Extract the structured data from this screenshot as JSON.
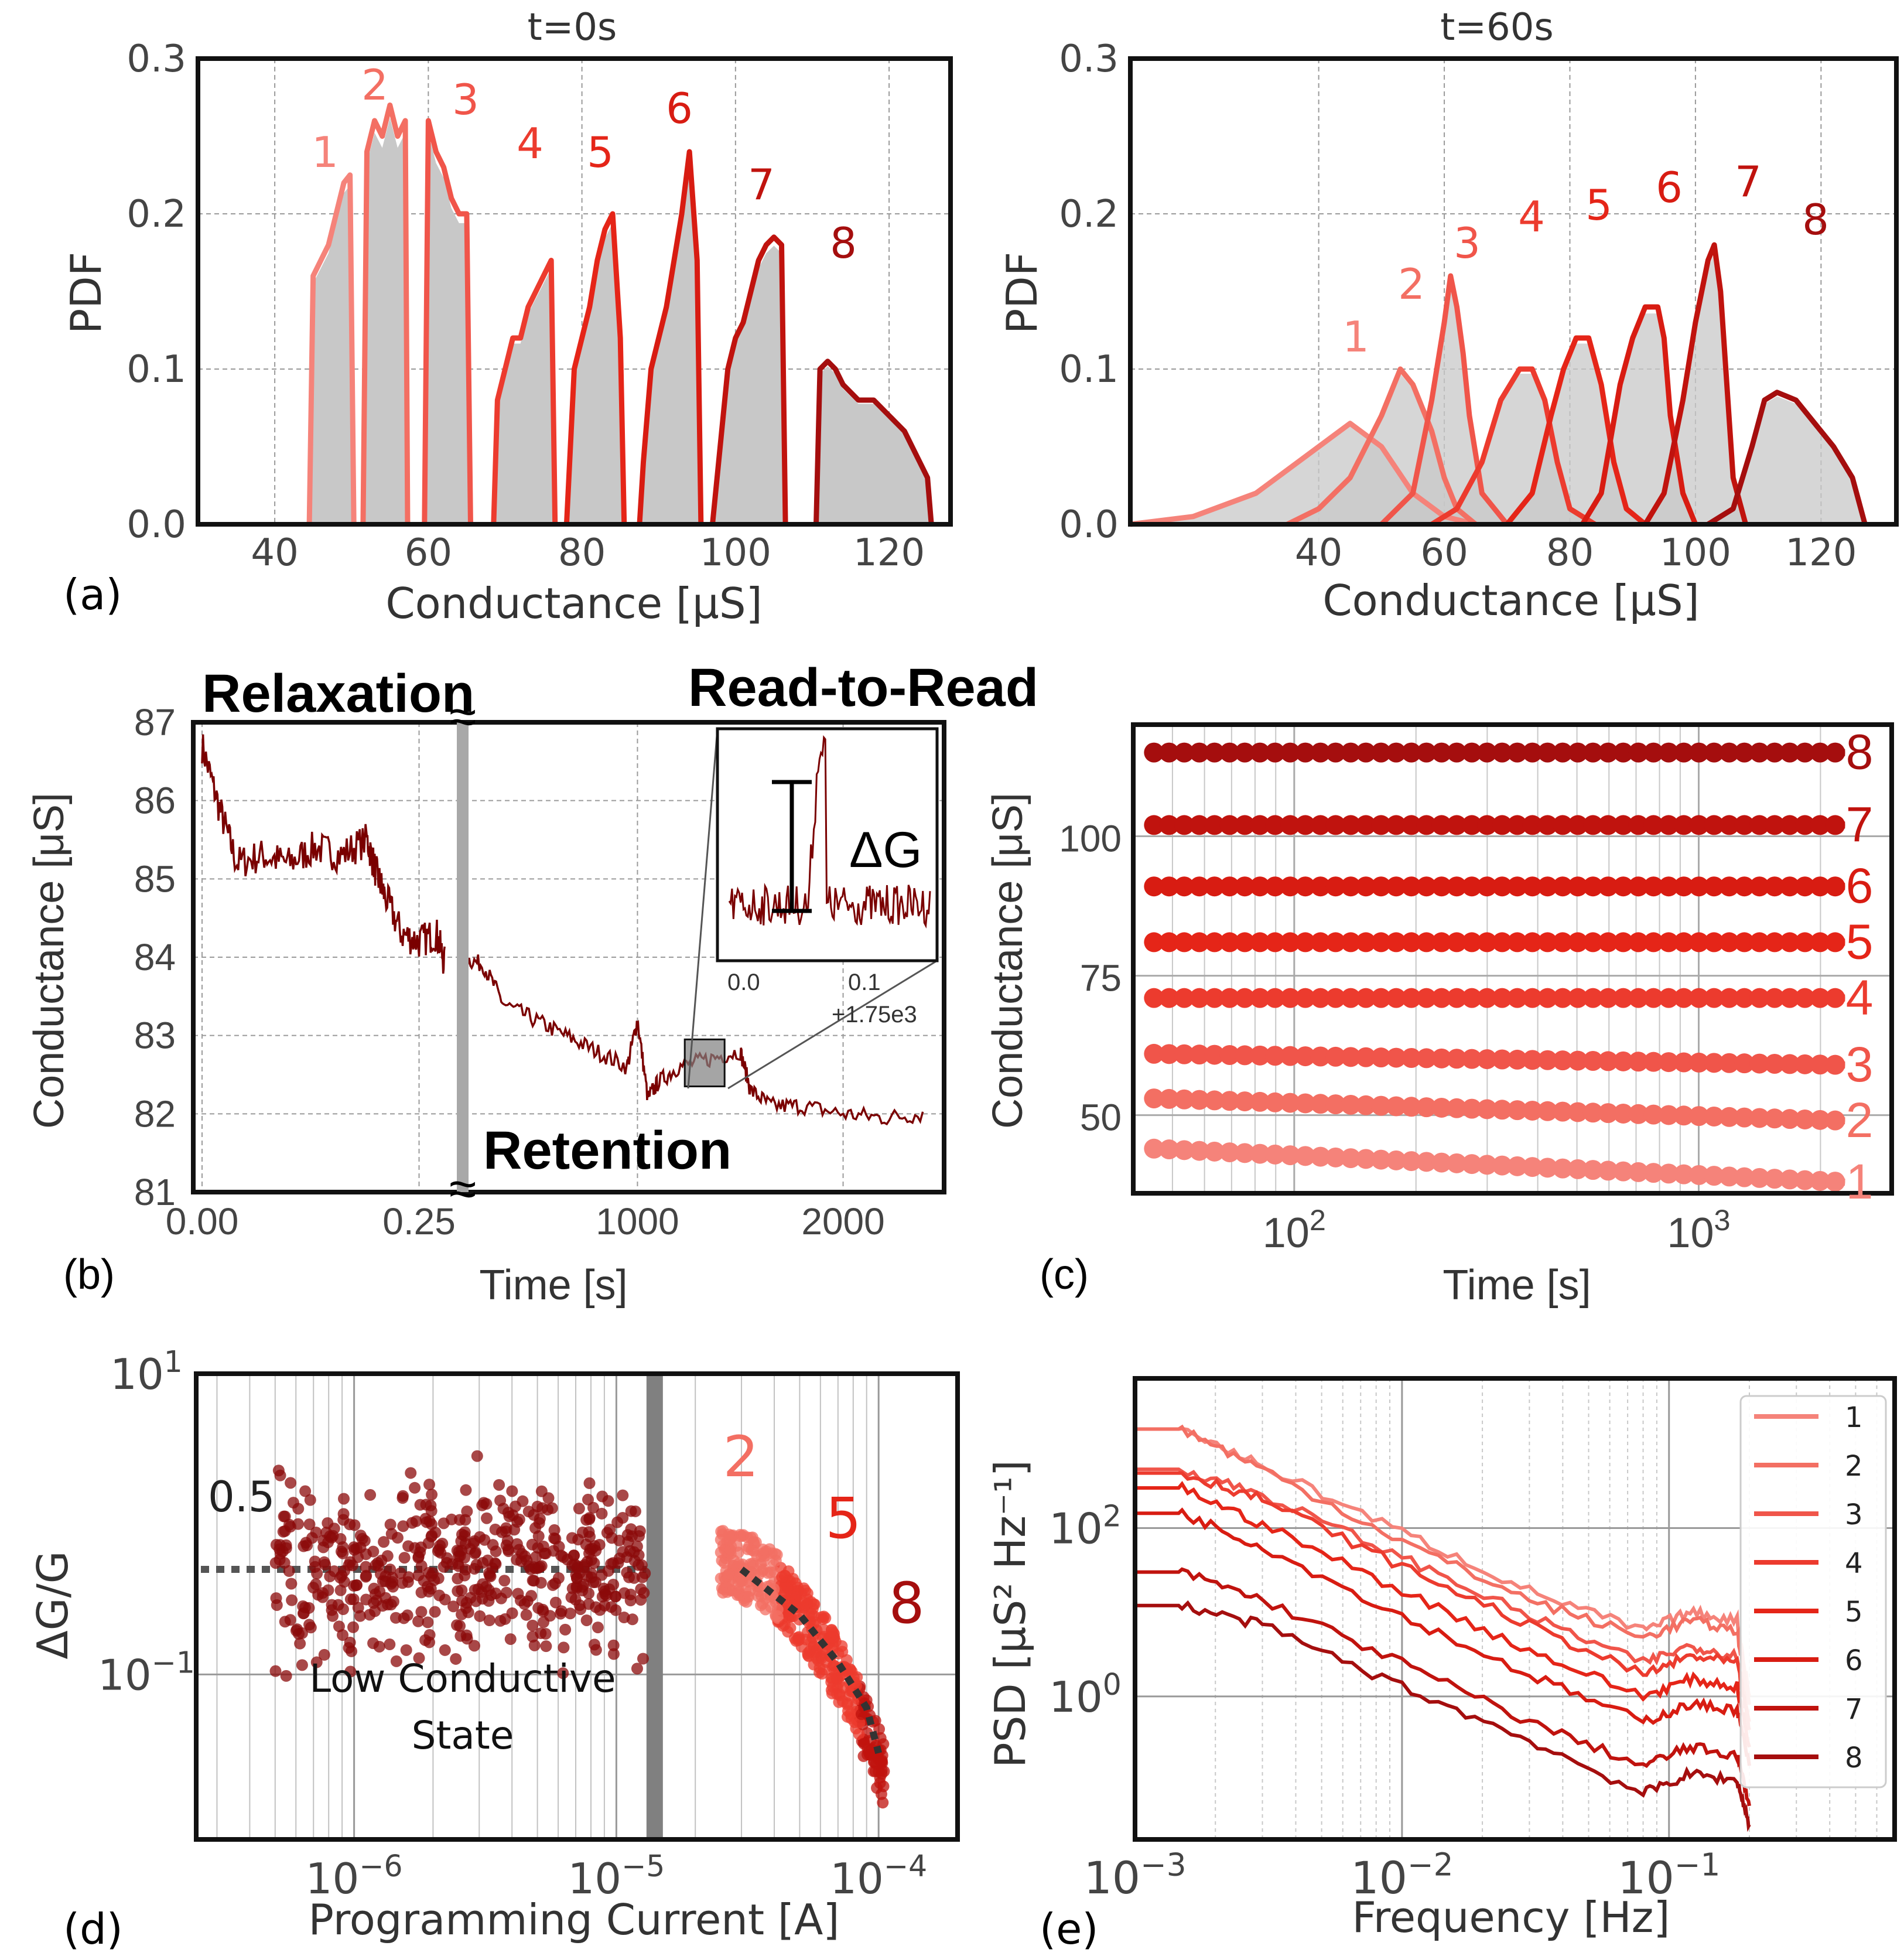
{
  "colors": {
    "levels": [
      "#f5837a",
      "#f36f63",
      "#f0554a",
      "#ec3b2e",
      "#e52518",
      "#d81c12",
      "#c0130e",
      "#a50e0e"
    ],
    "gray_fill": "#c8c8c8",
    "trace": "#7a0000"
  },
  "panels": {
    "a_label": "(a)",
    "b_label": "(b)",
    "c_label": "(c)",
    "d_label": "(d)",
    "e_label": "(e)"
  },
  "chart_data": [
    {
      "id": "a_left",
      "type": "area",
      "title": "t=0s",
      "xlabel": "Conductance [μS]",
      "ylabel": "PDF",
      "xlim": [
        30,
        128
      ],
      "ylim": [
        0,
        0.3
      ],
      "xticks": [
        40,
        60,
        80,
        100,
        120
      ],
      "yticks": [
        "0.0",
        "0.1",
        "0.2",
        "0.3"
      ],
      "level_labels": [
        "1",
        "2",
        "3",
        "4",
        "5",
        "6",
        "7",
        "8"
      ],
      "series": [
        {
          "name": "1",
          "x": [
            44.5,
            45,
            46,
            47,
            48,
            49,
            49.8,
            50.3
          ],
          "y": [
            0,
            0.16,
            0.17,
            0.18,
            0.2,
            0.22,
            0.225,
            0
          ]
        },
        {
          "name": "2",
          "x": [
            51.5,
            52,
            53,
            54,
            55,
            56,
            57,
            57.3
          ],
          "y": [
            0,
            0.24,
            0.26,
            0.25,
            0.27,
            0.25,
            0.26,
            0
          ]
        },
        {
          "name": "3",
          "x": [
            59.5,
            60,
            61,
            62,
            63,
            64,
            65,
            65.5
          ],
          "y": [
            0,
            0.26,
            0.24,
            0.23,
            0.21,
            0.2,
            0.2,
            0
          ]
        },
        {
          "name": "4",
          "x": [
            68.5,
            69,
            71,
            72,
            73,
            74,
            75,
            76,
            76.5
          ],
          "y": [
            0,
            0.08,
            0.12,
            0.12,
            0.14,
            0.15,
            0.16,
            0.17,
            0
          ]
        },
        {
          "name": "5",
          "x": [
            78,
            79,
            80,
            81,
            82,
            83,
            84,
            85,
            85.5
          ],
          "y": [
            0,
            0.1,
            0.12,
            0.14,
            0.17,
            0.19,
            0.2,
            0.12,
            0
          ]
        },
        {
          "name": "6",
          "x": [
            87.5,
            88,
            89,
            90,
            91,
            92,
            93,
            94,
            95,
            95.5
          ],
          "y": [
            0,
            0.04,
            0.1,
            0.12,
            0.14,
            0.17,
            0.2,
            0.24,
            0.17,
            0
          ]
        },
        {
          "name": "7",
          "x": [
            97,
            98,
            99,
            100,
            101,
            102,
            103,
            104,
            105,
            106,
            106.5
          ],
          "y": [
            0,
            0.05,
            0.1,
            0.12,
            0.13,
            0.15,
            0.17,
            0.18,
            0.185,
            0.18,
            0
          ]
        },
        {
          "name": "8",
          "x": [
            110.5,
            111,
            112,
            113,
            114,
            115,
            116,
            117,
            118,
            119,
            120,
            121,
            122,
            123,
            124,
            125,
            125.5
          ],
          "y": [
            0,
            0.1,
            0.105,
            0.1,
            0.09,
            0.085,
            0.08,
            0.08,
            0.08,
            0.075,
            0.07,
            0.065,
            0.06,
            0.05,
            0.04,
            0.03,
            0
          ]
        }
      ]
    },
    {
      "id": "a_right",
      "type": "area",
      "title": "t=60s",
      "xlabel": "Conductance [μS]",
      "ylabel": "PDF",
      "xlim": [
        10,
        132
      ],
      "ylim": [
        0,
        0.3
      ],
      "xticks": [
        40,
        60,
        80,
        100,
        120
      ],
      "yticks": [
        "0.0",
        "0.1",
        "0.2",
        "0.3"
      ],
      "level_labels": [
        "1",
        "2",
        "3",
        "4",
        "5",
        "6",
        "7",
        "8"
      ],
      "series": [
        {
          "name": "1",
          "x": [
            10,
            20,
            30,
            35,
            40,
            45,
            50,
            55,
            60,
            65
          ],
          "y": [
            0,
            0.005,
            0.02,
            0.035,
            0.05,
            0.065,
            0.05,
            0.02,
            0.005,
            0
          ]
        },
        {
          "name": "2",
          "x": [
            35,
            40,
            45,
            50,
            53,
            55,
            58,
            60,
            62,
            65
          ],
          "y": [
            0,
            0.01,
            0.03,
            0.07,
            0.1,
            0.09,
            0.06,
            0.03,
            0.01,
            0
          ]
        },
        {
          "name": "3",
          "x": [
            50,
            55,
            58,
            60,
            61,
            62,
            63,
            64,
            66,
            70
          ],
          "y": [
            0,
            0.02,
            0.08,
            0.13,
            0.16,
            0.14,
            0.11,
            0.07,
            0.02,
            0
          ]
        },
        {
          "name": "4",
          "x": [
            58,
            62,
            66,
            69,
            72,
            74,
            76,
            78,
            80,
            84
          ],
          "y": [
            0,
            0.01,
            0.04,
            0.08,
            0.1,
            0.1,
            0.08,
            0.04,
            0.01,
            0
          ]
        },
        {
          "name": "5",
          "x": [
            70,
            74,
            77,
            79,
            81,
            83,
            85,
            87,
            89,
            92
          ],
          "y": [
            0,
            0.02,
            0.07,
            0.1,
            0.12,
            0.12,
            0.09,
            0.04,
            0.01,
            0
          ]
        },
        {
          "name": "6",
          "x": [
            82,
            85,
            88,
            90,
            92,
            94,
            95,
            96,
            98,
            100
          ],
          "y": [
            0,
            0.02,
            0.09,
            0.12,
            0.14,
            0.14,
            0.12,
            0.07,
            0.02,
            0
          ]
        },
        {
          "name": "7",
          "x": [
            92,
            95,
            98,
            100,
            102,
            103,
            104,
            105,
            106,
            108
          ],
          "y": [
            0,
            0.02,
            0.08,
            0.13,
            0.17,
            0.18,
            0.15,
            0.09,
            0.03,
            0
          ]
        },
        {
          "name": "8",
          "x": [
            102,
            106,
            109,
            111,
            113,
            116,
            119,
            122,
            125,
            127
          ],
          "y": [
            0,
            0.01,
            0.05,
            0.08,
            0.085,
            0.08,
            0.065,
            0.05,
            0.03,
            0
          ]
        }
      ]
    },
    {
      "id": "b",
      "type": "line",
      "xlabel": "Time [s]",
      "ylabel": "Conductance [μS]",
      "ylim": [
        81,
        87
      ],
      "yticks": [
        81,
        82,
        83,
        84,
        85,
        86,
        87
      ],
      "xticks_left": [
        "0.00",
        "0.25"
      ],
      "xticks_right": [
        "1000",
        "2000"
      ],
      "annotations": {
        "relaxation": "Relaxation",
        "read_to_read": "Read-to-Read",
        "retention": "Retention",
        "delta_g": "ΔG",
        "break_mark": "≈"
      },
      "inset": {
        "xticks": [
          "0.0",
          "0.1"
        ],
        "offset": "+1.75e3"
      },
      "relaxation_series": {
        "x": [
          0.0,
          0.02,
          0.04,
          0.07,
          0.1,
          0.13,
          0.16,
          0.19,
          0.2,
          0.21,
          0.23,
          0.25,
          0.27,
          0.28
        ],
        "y": [
          86.7,
          85.9,
          85.2,
          85.3,
          85.2,
          85.4,
          85.3,
          85.5,
          85.1,
          84.8,
          84.3,
          84.2,
          84.3,
          83.9
        ]
      },
      "retention_series": {
        "x": [
          150,
          250,
          350,
          500,
          650,
          800,
          950,
          1000,
          1050,
          1100,
          1200,
          1350,
          1500,
          1550,
          1650,
          1800,
          2000,
          2200,
          2400
        ],
        "y": [
          84.0,
          83.9,
          83.4,
          83.2,
          83.0,
          82.8,
          82.6,
          83.2,
          82.2,
          82.4,
          82.6,
          82.7,
          82.8,
          82.3,
          82.1,
          82.1,
          82.0,
          81.95,
          82.0
        ]
      }
    },
    {
      "id": "c",
      "type": "scatter",
      "xlabel": "Time [s]",
      "ylabel": "Conductance [μS]",
      "xscale": "log",
      "xlim": [
        40,
        3000
      ],
      "ylim": [
        36,
        120
      ],
      "yticks": [
        50,
        75,
        100
      ],
      "xtick_exponents": [
        "2",
        "3"
      ],
      "series": [
        {
          "name": "1",
          "start": 44,
          "end": 38
        },
        {
          "name": "2",
          "start": 53,
          "end": 49
        },
        {
          "name": "3",
          "start": 61,
          "end": 59
        },
        {
          "name": "4",
          "start": 71,
          "end": 71
        },
        {
          "name": "5",
          "start": 81,
          "end": 81
        },
        {
          "name": "6",
          "start": 91,
          "end": 91
        },
        {
          "name": "7",
          "start": 102,
          "end": 102
        },
        {
          "name": "8",
          "start": 115,
          "end": 115
        }
      ]
    },
    {
      "id": "d",
      "type": "scatter",
      "xlabel": "Programming Current [A]",
      "ylabel": "ΔG/G",
      "xscale": "log",
      "yscale": "log",
      "xlim": [
        2.5e-07,
        0.0002
      ],
      "ylim": [
        0.008,
        10
      ],
      "xtick_exponents": [
        "−6",
        "−5",
        "−4"
      ],
      "ytick_exponents": [
        "1",
        "−1"
      ],
      "threshold_label": "0.5",
      "region_label_line1": "Low Conductive",
      "region_label_line2": "State",
      "level_labels": [
        "2",
        "5",
        "8"
      ],
      "boundary_current": 1.4e-05,
      "trend": {
        "x": [
          3e-05,
          5e-05,
          7e-05,
          9e-05,
          0.0001
        ],
        "y": [
          0.5,
          0.25,
          0.12,
          0.06,
          0.03
        ]
      }
    },
    {
      "id": "e",
      "type": "line",
      "xlabel": "Frequency [Hz]",
      "ylabel": "PSD [μS² Hz⁻¹]",
      "xscale": "log",
      "yscale": "log",
      "xlim": [
        0.001,
        0.7
      ],
      "ylim": [
        0.02,
        6000
      ],
      "xtick_exponents": [
        "−3",
        "−2",
        "−1"
      ],
      "ytick_exponents": [
        "2",
        "0"
      ],
      "legend": [
        "1",
        "2",
        "3",
        "4",
        "5",
        "6",
        "7",
        "8"
      ],
      "legend_position": "right",
      "series": [
        {
          "name": "1",
          "x": [
            0.001,
            0.0015,
            0.003,
            0.01,
            0.03,
            0.08,
            0.12,
            0.18,
            0.2
          ],
          "y": [
            1500,
            1500,
            550,
            90,
            18,
            6,
            10,
            8,
            1
          ]
        },
        {
          "name": "2",
          "x": [
            0.001,
            0.0015,
            0.003,
            0.01,
            0.03,
            0.08,
            0.12,
            0.18,
            0.2
          ],
          "y": [
            1500,
            1500,
            500,
            70,
            14,
            5,
            8,
            6,
            0.8
          ]
        },
        {
          "name": "3",
          "x": [
            0.001,
            0.0015,
            0.003,
            0.01,
            0.03,
            0.08,
            0.12,
            0.18,
            0.2
          ],
          "y": [
            500,
            500,
            250,
            45,
            9,
            2.5,
            4,
            3,
            0.5
          ]
        },
        {
          "name": "4",
          "x": [
            0.001,
            0.0015,
            0.003,
            0.01,
            0.03,
            0.08,
            0.12,
            0.18,
            0.2
          ],
          "y": [
            450,
            450,
            220,
            35,
            7,
            1.8,
            3,
            2.5,
            0.4
          ]
        },
        {
          "name": "5",
          "x": [
            0.001,
            0.0015,
            0.003,
            0.01,
            0.03,
            0.08,
            0.12,
            0.18,
            0.2
          ],
          "y": [
            300,
            300,
            110,
            18,
            3.5,
            1.0,
            1.6,
            1.3,
            0.25
          ]
        },
        {
          "name": "6",
          "x": [
            0.001,
            0.0015,
            0.003,
            0.01,
            0.03,
            0.08,
            0.12,
            0.18,
            0.2
          ],
          "y": [
            150,
            150,
            60,
            9,
            1.8,
            0.5,
            0.8,
            0.7,
            0.15
          ]
        },
        {
          "name": "7",
          "x": [
            0.001,
            0.0015,
            0.003,
            0.01,
            0.03,
            0.08,
            0.12,
            0.18,
            0.2
          ],
          "y": [
            30,
            30,
            14,
            2.5,
            0.5,
            0.15,
            0.25,
            0.2,
            0.05
          ]
        },
        {
          "name": "8",
          "x": [
            0.001,
            0.0015,
            0.003,
            0.01,
            0.03,
            0.08,
            0.12,
            0.18,
            0.2
          ],
          "y": [
            12,
            12,
            7,
            1.3,
            0.3,
            0.07,
            0.12,
            0.1,
            0.03
          ]
        }
      ]
    }
  ]
}
